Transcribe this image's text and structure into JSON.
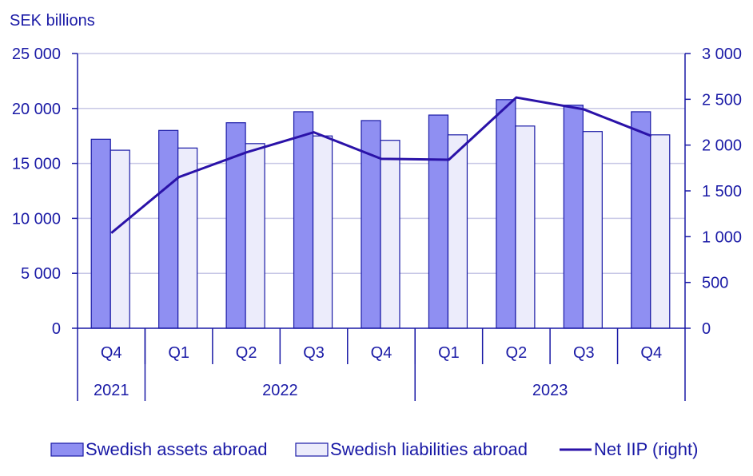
{
  "chart_data": {
    "type": "bar",
    "ylabel": "SEK billions",
    "quarters": [
      "Q4",
      "Q1",
      "Q2",
      "Q3",
      "Q4",
      "Q1",
      "Q2",
      "Q3",
      "Q4"
    ],
    "years": [
      {
        "label": "2021",
        "count": 1
      },
      {
        "label": "2022",
        "count": 4
      },
      {
        "label": "2023",
        "count": 4
      }
    ],
    "ylim": [
      0,
      25000
    ],
    "y_ticks": [
      0,
      5000,
      10000,
      15000,
      20000,
      25000
    ],
    "y_tick_labels": [
      "0",
      "5 000",
      "10 000",
      "15 000",
      "20 000",
      "25 000"
    ],
    "y2lim": [
      0,
      3000
    ],
    "y2_ticks": [
      0,
      500,
      1000,
      1500,
      2000,
      2500,
      3000
    ],
    "y2_tick_labels": [
      "0",
      "500",
      "1 000",
      "1 500",
      "2 000",
      "2 500",
      "3 000"
    ],
    "series": [
      {
        "name": "Swedish assets abroad",
        "type": "bar",
        "axis": "left",
        "values": [
          17200,
          18000,
          18700,
          19700,
          18900,
          19400,
          20800,
          20300,
          19700
        ]
      },
      {
        "name": "Swedish liabilities abroad",
        "type": "bar",
        "axis": "left",
        "values": [
          16200,
          16400,
          16800,
          17500,
          17100,
          17600,
          18400,
          17900,
          17600
        ]
      },
      {
        "name": "Net IIP (right)",
        "type": "line",
        "axis": "right",
        "values": [
          1040,
          1650,
          1920,
          2140,
          1850,
          1840,
          2520,
          2390,
          2100
        ]
      }
    ],
    "grid": true,
    "legend_position": "bottom",
    "colors": {
      "assets_fill": "#8f8ff2",
      "liabilities_fill": "#ececfb",
      "outline": "#1a1aa6",
      "line": "#2a12a8",
      "grid": "#c8c8e6",
      "text": "#1a1aa6"
    }
  }
}
